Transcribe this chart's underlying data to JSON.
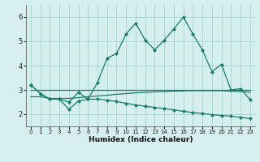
{
  "title": "",
  "xlabel": "Humidex (Indice chaleur)",
  "background_color": "#d5efee",
  "grid_color": "#aad8d5",
  "line_color": "#1a7a6e",
  "xlim": [
    -0.5,
    23.5
  ],
  "ylim": [
    1.5,
    6.5
  ],
  "xticks": [
    0,
    1,
    2,
    3,
    4,
    5,
    6,
    7,
    8,
    9,
    10,
    11,
    12,
    13,
    14,
    15,
    16,
    17,
    18,
    19,
    20,
    21,
    22,
    23
  ],
  "yticks": [
    2,
    3,
    4,
    5,
    6
  ],
  "main_line_x": [
    0,
    1,
    2,
    3,
    4,
    5,
    6,
    7,
    8,
    9,
    10,
    11,
    12,
    13,
    14,
    15,
    16,
    17,
    18,
    19,
    20,
    21,
    22,
    23
  ],
  "main_line_y": [
    3.2,
    2.85,
    2.62,
    2.62,
    2.5,
    2.9,
    2.62,
    3.3,
    4.3,
    4.5,
    5.3,
    5.75,
    5.05,
    4.65,
    5.05,
    5.5,
    6.0,
    5.3,
    4.65,
    3.75,
    4.05,
    3.0,
    3.05,
    2.6
  ],
  "line2_x": [
    0,
    1,
    2,
    3,
    4,
    5,
    6,
    7,
    8,
    9,
    10,
    11,
    12,
    13,
    14,
    15,
    16,
    17,
    18,
    19,
    20,
    21,
    22,
    23
  ],
  "line2_y": [
    3.0,
    3.0,
    3.0,
    3.0,
    3.0,
    3.0,
    3.0,
    3.0,
    3.0,
    3.0,
    3.0,
    3.0,
    3.0,
    3.0,
    3.0,
    3.0,
    3.0,
    3.0,
    3.0,
    3.0,
    3.0,
    3.0,
    3.0,
    3.0
  ],
  "line3_x": [
    0,
    1,
    2,
    3,
    4,
    5,
    6,
    7,
    8,
    9,
    10,
    11,
    12,
    13,
    14,
    15,
    16,
    17,
    18,
    19,
    20,
    21,
    22,
    23
  ],
  "line3_y": [
    2.72,
    2.72,
    2.65,
    2.65,
    2.65,
    2.68,
    2.72,
    2.75,
    2.78,
    2.82,
    2.85,
    2.88,
    2.9,
    2.92,
    2.93,
    2.95,
    2.96,
    2.97,
    2.97,
    2.97,
    2.97,
    2.95,
    2.93,
    2.9
  ],
  "line4_x": [
    0,
    1,
    2,
    3,
    4,
    5,
    6,
    7,
    8,
    9,
    10,
    11,
    12,
    13,
    14,
    15,
    16,
    17,
    18,
    19,
    20,
    21,
    22,
    23
  ],
  "line4_y": [
    3.2,
    2.85,
    2.62,
    2.62,
    2.2,
    2.55,
    2.62,
    2.62,
    2.58,
    2.52,
    2.45,
    2.38,
    2.33,
    2.28,
    2.23,
    2.18,
    2.12,
    2.07,
    2.03,
    1.98,
    1.95,
    1.92,
    1.87,
    1.82
  ]
}
